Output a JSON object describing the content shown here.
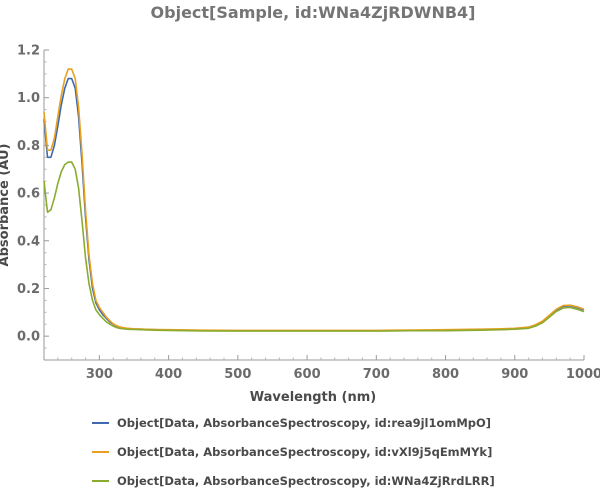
{
  "chart_data": {
    "type": "line",
    "title": "Object[Sample, id:WNa4ZjRDWNB4]",
    "xlabel": "Wavelength  (nm)",
    "ylabel": "Absorbance  (AU)",
    "xlim": [
      220,
      1000
    ],
    "ylim": [
      -0.1,
      1.2
    ],
    "xticks": [
      300,
      400,
      500,
      600,
      700,
      800,
      900,
      1000
    ],
    "yticks": [
      0.0,
      0.2,
      0.4,
      0.6,
      0.8,
      1.0,
      1.2
    ],
    "grid": false,
    "legend_position": "bottom",
    "series": [
      {
        "name": "Object[Data, AbsorbanceSpectroscopy, id:rea9jl1omMpO]",
        "color": "#3f6ab0",
        "x": [
          220,
          225,
          230,
          235,
          240,
          245,
          250,
          255,
          260,
          265,
          270,
          275,
          280,
          285,
          290,
          295,
          300,
          305,
          310,
          315,
          320,
          325,
          330,
          340,
          350,
          360,
          380,
          400,
          450,
          500,
          550,
          600,
          650,
          700,
          750,
          800,
          850,
          880,
          900,
          920,
          930,
          940,
          950,
          960,
          970,
          980,
          990,
          1000
        ],
        "y": [
          0.91,
          0.75,
          0.75,
          0.8,
          0.88,
          0.97,
          1.04,
          1.08,
          1.08,
          1.04,
          0.92,
          0.72,
          0.5,
          0.32,
          0.2,
          0.14,
          0.11,
          0.09,
          0.075,
          0.06,
          0.05,
          0.042,
          0.036,
          0.032,
          0.03,
          0.029,
          0.027,
          0.026,
          0.024,
          0.023,
          0.023,
          0.023,
          0.023,
          0.023,
          0.024,
          0.024,
          0.026,
          0.028,
          0.03,
          0.035,
          0.045,
          0.06,
          0.085,
          0.11,
          0.125,
          0.127,
          0.12,
          0.11
        ]
      },
      {
        "name": "Object[Data, AbsorbanceSpectroscopy, id:vXl9j5qEmMYk]",
        "color": "#e8a020",
        "x": [
          220,
          225,
          230,
          235,
          240,
          245,
          250,
          255,
          260,
          265,
          270,
          275,
          280,
          285,
          290,
          295,
          300,
          305,
          310,
          315,
          320,
          325,
          330,
          340,
          350,
          360,
          380,
          400,
          450,
          500,
          550,
          600,
          650,
          700,
          750,
          800,
          850,
          880,
          900,
          920,
          930,
          940,
          950,
          960,
          970,
          980,
          990,
          1000
        ],
        "y": [
          0.94,
          0.78,
          0.78,
          0.83,
          0.92,
          1.01,
          1.08,
          1.12,
          1.12,
          1.08,
          0.96,
          0.76,
          0.53,
          0.34,
          0.22,
          0.15,
          0.12,
          0.1,
          0.08,
          0.065,
          0.052,
          0.044,
          0.038,
          0.033,
          0.031,
          0.03,
          0.028,
          0.027,
          0.025,
          0.024,
          0.024,
          0.024,
          0.024,
          0.024,
          0.026,
          0.027,
          0.029,
          0.031,
          0.033,
          0.038,
          0.048,
          0.063,
          0.088,
          0.113,
          0.128,
          0.13,
          0.123,
          0.113
        ]
      },
      {
        "name": "Object[Data, AbsorbanceSpectroscopy, id:WNa4ZjRrdLRR]",
        "color": "#8aab2e",
        "x": [
          220,
          225,
          230,
          235,
          240,
          245,
          250,
          255,
          260,
          265,
          270,
          275,
          280,
          285,
          290,
          295,
          300,
          305,
          310,
          315,
          320,
          325,
          330,
          340,
          350,
          360,
          380,
          400,
          450,
          500,
          550,
          600,
          650,
          700,
          750,
          800,
          850,
          880,
          900,
          920,
          930,
          940,
          950,
          960,
          970,
          980,
          990,
          1000
        ],
        "y": [
          0.65,
          0.52,
          0.53,
          0.58,
          0.64,
          0.69,
          0.72,
          0.73,
          0.73,
          0.7,
          0.62,
          0.48,
          0.33,
          0.22,
          0.15,
          0.11,
          0.09,
          0.075,
          0.06,
          0.05,
          0.042,
          0.036,
          0.032,
          0.029,
          0.028,
          0.027,
          0.025,
          0.024,
          0.022,
          0.021,
          0.021,
          0.021,
          0.021,
          0.021,
          0.023,
          0.023,
          0.025,
          0.027,
          0.029,
          0.033,
          0.042,
          0.056,
          0.08,
          0.104,
          0.118,
          0.12,
          0.113,
          0.103
        ]
      }
    ]
  }
}
